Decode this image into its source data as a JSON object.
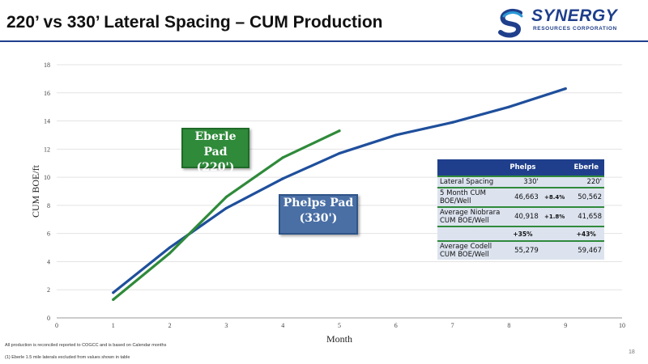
{
  "title": "220’ vs 330’ Lateral Spacing – CUM Production",
  "logo": {
    "name": "SYNERGY",
    "sub": "RESOURCES CORPORATION"
  },
  "colors": {
    "title_rule": "#1f3f8c",
    "eberle": "#2f8a3a",
    "phelps": "#1f4f9c",
    "table_header": "#1f3f8c"
  },
  "callouts": {
    "eberle": {
      "line1": "Eberle Pad",
      "line2": "(220')"
    },
    "phelps": {
      "line1": "Phelps Pad",
      "line2": "(330')"
    }
  },
  "chart_data": {
    "type": "line",
    "xlabel": "Month",
    "ylabel": "CUM BOE/ft",
    "xlim": [
      0,
      10
    ],
    "ylim": [
      0,
      18
    ],
    "x_ticks": [
      0,
      1,
      2,
      3,
      4,
      5,
      6,
      7,
      8,
      9,
      10
    ],
    "y_ticks": [
      0,
      2,
      4,
      6,
      8,
      10,
      12,
      14,
      16,
      18
    ],
    "grid": "horizontal",
    "series": [
      {
        "name": "Eberle Pad (220')",
        "color": "#2f8a3a",
        "x": [
          1,
          2,
          3,
          4,
          5
        ],
        "y": [
          1.3,
          4.6,
          8.6,
          11.4,
          13.3
        ]
      },
      {
        "name": "Phelps Pad (330')",
        "color": "#1f4f9c",
        "x": [
          1,
          2,
          3,
          4,
          5,
          6,
          7,
          8,
          9
        ],
        "y": [
          1.8,
          5.0,
          7.8,
          9.9,
          11.7,
          13.0,
          13.9,
          15.0,
          16.3
        ]
      }
    ]
  },
  "table": {
    "headers": [
      "",
      "Phelps",
      "",
      "Eberle"
    ],
    "rows": [
      {
        "label": "Lateral Spacing",
        "phelps": "330'",
        "pct": "",
        "eberle": "220'"
      },
      {
        "label": "5 Month CUM BOE/Well",
        "phelps": "46,663",
        "pct": "+8.4%",
        "eberle": "50,562"
      },
      {
        "label": "Average Niobrara CUM BOE/Well",
        "phelps": "40,918",
        "pct": "+1.8%",
        "eberle": "41,658"
      }
    ],
    "pct_row": {
      "phelps": "+35%",
      "eberle": "+43%"
    },
    "last_row": {
      "label": "Average Codell CUM BOE/Well",
      "phelps": "55,279",
      "pct": "",
      "eberle": "59,467"
    }
  },
  "footnotes": {
    "note1": "All production is reconciled reported to COGCC and is based on Calendar months",
    "note2": "(1)    Eberle 1.5 mile laterals excluded from values shown in table"
  },
  "page_number": "18"
}
